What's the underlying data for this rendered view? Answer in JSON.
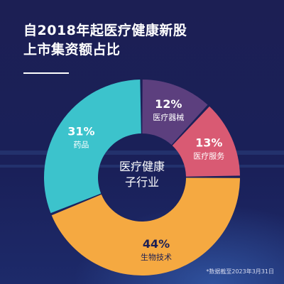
{
  "title": {
    "line1": "自2018年起医疗健康新股",
    "line2": "上市集资额占比"
  },
  "center_label": {
    "line1": "医疗健康",
    "line2": "子行业"
  },
  "footnote": "*数据截至2023年3月31日",
  "colors": {
    "background": "#1c1f54",
    "pharma": "#3cc3cc",
    "devices": "#5c3f7e",
    "services": "#d95a73",
    "biotech": "#f5a941"
  },
  "chart_data": {
    "type": "pie",
    "categories": [
      "药品",
      "医疗器械",
      "医疗服务",
      "生物技术"
    ],
    "values": [
      31,
      12,
      13,
      44
    ],
    "value_labels": [
      "31%",
      "12%",
      "13%",
      "44%"
    ],
    "unit": "%",
    "title": "自2018年起医疗健康新股上市集资额占比",
    "center_text": "医疗健康子行业"
  }
}
